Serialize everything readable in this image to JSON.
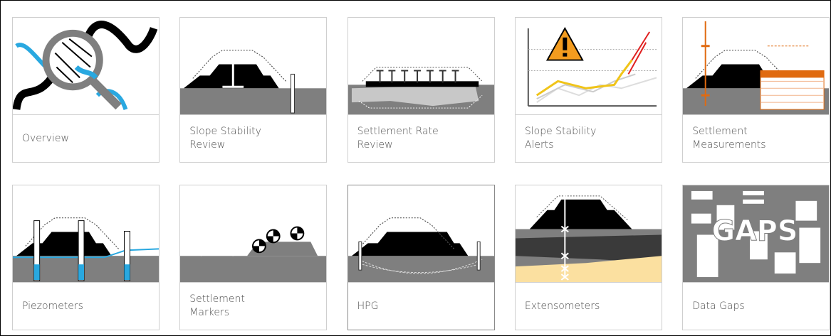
{
  "tiles": [
    {
      "label": "Overview"
    },
    {
      "label": "Slope Stability Review"
    },
    {
      "label": "Settlement Rate Review"
    },
    {
      "label": "Slope Stability Alerts"
    },
    {
      "label": "Settlement Measurements"
    },
    {
      "label": "Piezometers"
    },
    {
      "label": "Settlement Markers"
    },
    {
      "label": "HPG"
    },
    {
      "label": "Extensometers"
    },
    {
      "label": "Data Gaps",
      "icon_text": "GAPS"
    }
  ]
}
